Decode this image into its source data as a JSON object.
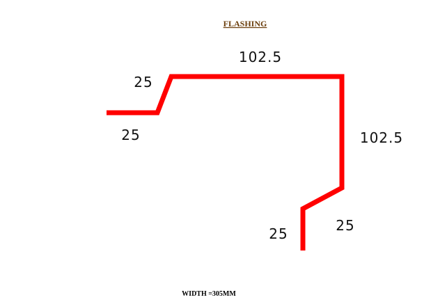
{
  "title": "FLASHING",
  "footer": "WIDTH  =305MM",
  "colors": {
    "title": "#6b3e0c",
    "profile": "#ff0000",
    "dimension_text": "#111111",
    "footer_text": "#000000",
    "background": "#ffffff"
  },
  "dimensions": {
    "top_segment": "102.5",
    "right_segment": "102.5",
    "upper_left_slope": "25",
    "lower_left_flat": "25",
    "lower_right_slope": "25",
    "bottom_drop": "25"
  }
}
